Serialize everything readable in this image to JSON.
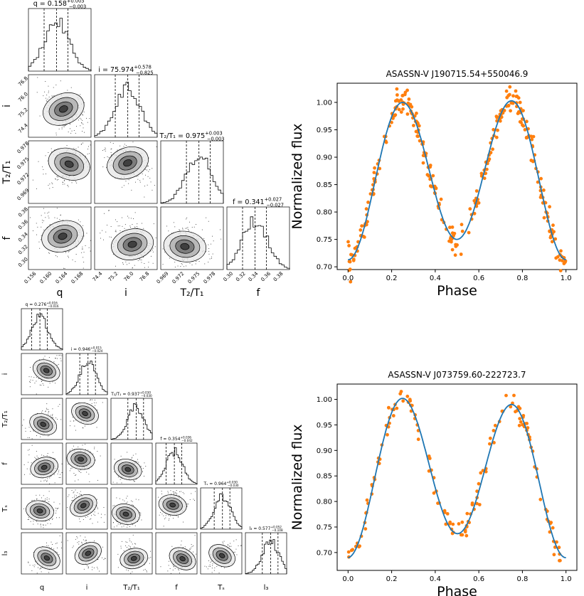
{
  "corner_top": {
    "params": [
      "q",
      "i",
      "T2/T1",
      "f"
    ],
    "axis_labels": [
      "q",
      "i",
      "T₂/T₁",
      "f"
    ],
    "titles": [
      {
        "text": "q = 0.158",
        "sup": "+0.003",
        "sub": "−0.003"
      },
      {
        "text": "i = 75.974",
        "sup": "+0.578",
        "sub": "−0.825"
      },
      {
        "text": "T₂/T₁ = 0.975",
        "sup": "+0.003",
        "sub": "−0.003"
      },
      {
        "text": "f = 0.341",
        "sup": "+0.027",
        "sub": "−0.027"
      }
    ],
    "ticks": [
      [
        "0.156",
        "0.160",
        "0.164",
        "0.168"
      ],
      [
        "74.4",
        "75.2",
        "76.0",
        "76.8"
      ],
      [
        "0.969",
        "0.972",
        "0.975",
        "0.978"
      ],
      [
        "0.30",
        "0.32",
        "0.34",
        "0.36",
        "0.38"
      ]
    ],
    "ytick_rows": [
      [
        "76.8",
        "76.0",
        "75.2",
        "74.4"
      ],
      [
        "0.978",
        "0.975",
        "0.972",
        "0.969"
      ],
      [
        "0.38",
        "0.36",
        "0.34",
        "0.32",
        "0.30"
      ]
    ]
  },
  "corner_bottom": {
    "params": [
      "q",
      "i",
      "T2/T1",
      "f",
      "Ts",
      "l3"
    ],
    "axis_labels": [
      "q",
      "i",
      "T₂/T₁",
      "f",
      "Tₛ",
      "l₃"
    ],
    "titles": [
      {
        "text": "q = 0.276",
        "sup": "+0.016",
        "sub": "−0.016"
      },
      {
        "text": "i = 0.946",
        "sup": "+0.015",
        "sub": "−0.024"
      },
      {
        "text": "T₂/T₁ = 0.937",
        "sup": "+0.030",
        "sub": "−0.030"
      },
      {
        "text": "f = 0.354",
        "sup": "+0.036",
        "sub": "−0.042"
      },
      {
        "text": "Tₛ = 0.964",
        "sup": "+0.030",
        "sub": "−0.030"
      },
      {
        "text": "l₃ = 0.577",
        "sup": "+0.052",
        "sub": "−0.108"
      }
    ]
  },
  "chart_data": [
    {
      "type": "line",
      "title": "ASASSN-V J190715.54+550046.9",
      "xlabel": "Phase",
      "ylabel": "Normalized flux",
      "xlim": [
        -0.05,
        1.05
      ],
      "ylim": [
        0.695,
        1.035
      ],
      "xticks": [
        "0.0",
        "0.2",
        "0.4",
        "0.6",
        "0.8",
        "1.0"
      ],
      "yticks": [
        "0.70",
        "0.75",
        "0.80",
        "0.85",
        "0.90",
        "0.95",
        "1.00"
      ],
      "model": {
        "name": "model",
        "color": "#1f77b4",
        "min_phase0": 0.713,
        "max1": 1.0,
        "min_phase05": 0.75,
        "max2": 1.003
      },
      "observations": {
        "name": "data",
        "color": "#ff7f0e",
        "count": 300,
        "scatter": 0.012
      }
    },
    {
      "type": "line",
      "title": "ASASSN-V J073759.60-222723.7",
      "xlabel": "Phase",
      "ylabel": "Normalized flux",
      "xlim": [
        -0.05,
        1.05
      ],
      "ylim": [
        0.665,
        1.03
      ],
      "xticks": [
        "0.0",
        "0.2",
        "0.4",
        "0.6",
        "0.8",
        "1.0"
      ],
      "yticks": [
        "0.70",
        "0.75",
        "0.80",
        "0.85",
        "0.90",
        "0.95",
        "1.00"
      ],
      "model": {
        "name": "model",
        "color": "#1f77b4",
        "min_phase0": 0.69,
        "max1": 1.002,
        "min_phase05": 0.737,
        "max2": 0.99
      },
      "observations": {
        "name": "data",
        "color": "#ff7f0e",
        "count": 150,
        "scatter": 0.011
      }
    }
  ]
}
